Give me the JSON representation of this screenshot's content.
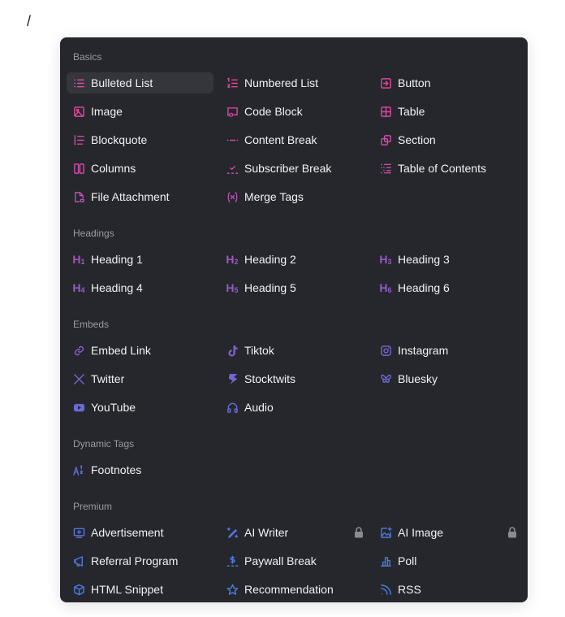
{
  "caret": "/",
  "colors": {
    "panel": "#26272c",
    "active": "#34363c",
    "lock": "#8a8b90"
  },
  "sections": [
    {
      "label": "Basics",
      "items": [
        {
          "label": "Bulleted List",
          "icon": "bulleted-list-icon",
          "color": "#e5489a",
          "active": true
        },
        {
          "label": "Numbered List",
          "icon": "numbered-list-icon",
          "color": "#e0479c"
        },
        {
          "label": "Button",
          "icon": "button-icon",
          "color": "#dd479e"
        },
        {
          "label": "Image",
          "icon": "image-icon",
          "color": "#e0479c"
        },
        {
          "label": "Code Block",
          "icon": "code-block-icon",
          "color": "#dc479f"
        },
        {
          "label": "Table",
          "icon": "table-icon",
          "color": "#d848a1"
        },
        {
          "label": "Blockquote",
          "icon": "blockquote-icon",
          "color": "#d849a2"
        },
        {
          "label": "Content Break",
          "icon": "content-break-icon",
          "color": "#d449a4"
        },
        {
          "label": "Section",
          "icon": "section-icon",
          "color": "#cf4aa7"
        },
        {
          "label": "Columns",
          "icon": "columns-icon",
          "color": "#cf4aa7"
        },
        {
          "label": "Subscriber Break",
          "icon": "subscriber-break-icon",
          "color": "#c94ca9"
        },
        {
          "label": "Table of Contents",
          "icon": "table-of-contents-icon",
          "color": "#c44dac"
        },
        {
          "label": "File Attachment",
          "icon": "file-attachment-icon",
          "color": "#b950b0"
        },
        {
          "label": "Merge Tags",
          "icon": "merge-tags-icon",
          "color": "#b352b4"
        }
      ]
    },
    {
      "label": "Headings",
      "items": [
        {
          "label": "Heading 1",
          "icon": "heading-1-icon",
          "glyph": "H",
          "sub": "1",
          "color": "#a455bd"
        },
        {
          "label": "Heading 2",
          "icon": "heading-2-icon",
          "glyph": "H",
          "sub": "2",
          "color": "#9e57c0"
        },
        {
          "label": "Heading 3",
          "icon": "heading-3-icon",
          "glyph": "H",
          "sub": "3",
          "color": "#9a58c2"
        },
        {
          "label": "Heading 4",
          "icon": "heading-4-icon",
          "glyph": "H",
          "sub": "4",
          "color": "#965ac5"
        },
        {
          "label": "Heading 5",
          "icon": "heading-5-icon",
          "glyph": "H",
          "sub": "5",
          "color": "#925bc8"
        },
        {
          "label": "Heading 6",
          "icon": "heading-6-icon",
          "glyph": "H",
          "sub": "6",
          "color": "#8e5cca"
        }
      ]
    },
    {
      "label": "Embeds",
      "items": [
        {
          "label": "Embed Link",
          "icon": "link-icon",
          "color": "#8660cc"
        },
        {
          "label": "Tiktok",
          "icon": "tiktok-icon",
          "color": "#8062cf"
        },
        {
          "label": "Instagram",
          "icon": "instagram-icon",
          "color": "#7c63d0"
        },
        {
          "label": "Twitter",
          "icon": "x-twitter-icon",
          "color": "#7665d2"
        },
        {
          "label": "Stocktwits",
          "icon": "stocktwits-icon",
          "color": "#7266d4"
        },
        {
          "label": "Bluesky",
          "icon": "bluesky-icon",
          "color": "#6e68d5"
        },
        {
          "label": "YouTube",
          "icon": "youtube-icon",
          "color": "#6a69d6"
        },
        {
          "label": "Audio",
          "icon": "headphones-icon",
          "color": "#666ad7"
        }
      ]
    },
    {
      "label": "Dynamic Tags",
      "items": [
        {
          "label": "Footnotes",
          "icon": "footnotes-icon",
          "color": "#5d6ed9"
        }
      ]
    },
    {
      "label": "Premium",
      "items": [
        {
          "label": "Advertisement",
          "icon": "advertisement-icon",
          "color": "#5673db"
        },
        {
          "label": "AI Writer",
          "icon": "ai-writer-icon",
          "color": "#5275dc",
          "locked": true
        },
        {
          "label": "AI Image",
          "icon": "ai-image-icon",
          "color": "#4f77dd",
          "locked": true
        },
        {
          "label": "Referral Program",
          "icon": "megaphone-icon",
          "color": "#4d78de"
        },
        {
          "label": "Paywall Break",
          "icon": "paywall-break-icon",
          "color": "#4b7adf"
        },
        {
          "label": "Poll",
          "icon": "poll-icon",
          "color": "#497be0"
        },
        {
          "label": "HTML Snippet",
          "icon": "cube-icon",
          "color": "#477de1"
        },
        {
          "label": "Recommendation",
          "icon": "star-icon",
          "color": "#457ee2"
        },
        {
          "label": "RSS",
          "icon": "rss-icon",
          "color": "#4380e3"
        }
      ]
    }
  ]
}
